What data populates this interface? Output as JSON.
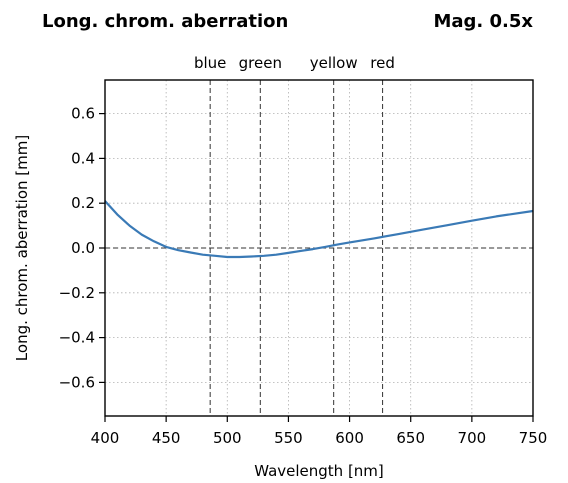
{
  "chart_data": {
    "type": "line",
    "title": "Long. chrom. aberration",
    "subtitle": "Mag. 0.5x",
    "xlabel": "Wavelength [nm]",
    "ylabel": "Long. chrom. aberration [mm]",
    "xlim": [
      400,
      750
    ],
    "ylim": [
      -0.75,
      0.75
    ],
    "x_ticks": [
      400,
      450,
      500,
      550,
      600,
      650,
      700,
      750
    ],
    "y_ticks": [
      0.6,
      0.4,
      0.2,
      0.0,
      -0.2,
      -0.4,
      -0.6
    ],
    "y_tick_labels": [
      "0.6",
      "0.4",
      "0.2",
      "0.0",
      "−0.2",
      "−0.4",
      "−0.6"
    ],
    "grid": true,
    "series": [
      {
        "color": "#3a7ab6",
        "x": [
          400,
          410,
          420,
          430,
          440,
          450,
          460,
          470,
          480,
          490,
          500,
          510,
          520,
          530,
          540,
          550,
          560,
          570,
          580,
          590,
          600,
          620,
          640,
          660,
          680,
          700,
          720,
          750
        ],
        "y": [
          0.21,
          0.15,
          0.1,
          0.06,
          0.03,
          0.005,
          -0.01,
          -0.02,
          -0.03,
          -0.035,
          -0.04,
          -0.04,
          -0.038,
          -0.035,
          -0.03,
          -0.022,
          -0.013,
          -0.005,
          0.005,
          0.015,
          0.025,
          0.043,
          0.062,
          0.082,
          0.102,
          0.122,
          0.141,
          0.165
        ]
      }
    ],
    "reference_lines": {
      "horizontal": [
        0.0
      ],
      "vertical": [
        {
          "x": 486,
          "label": "blue"
        },
        {
          "x": 527,
          "label": "green"
        },
        {
          "x": 587,
          "label": "yellow"
        },
        {
          "x": 627,
          "label": "red"
        }
      ]
    }
  }
}
